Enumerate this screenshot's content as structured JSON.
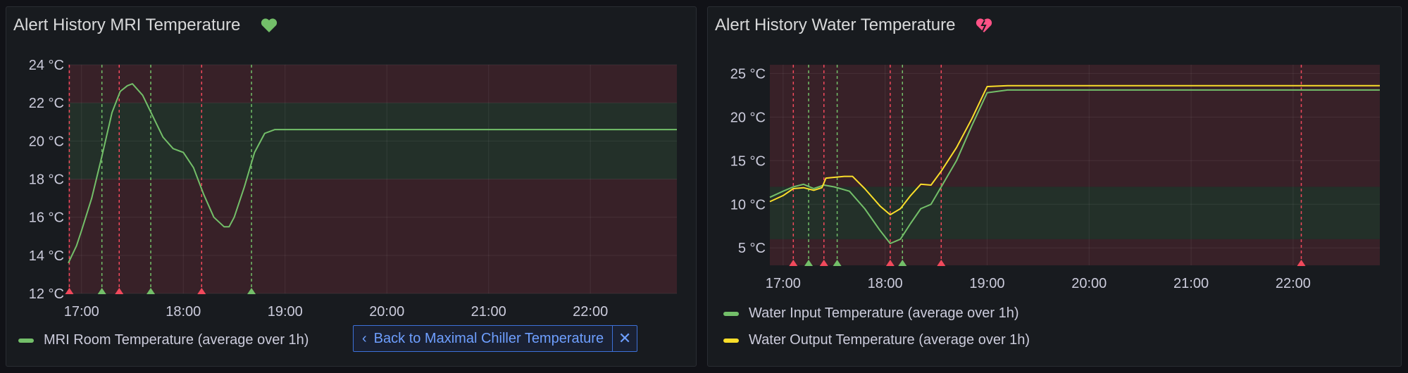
{
  "panels": [
    {
      "title": "Alert History MRI Temperature",
      "health_icon": "heart-icon",
      "health_color": "#73bf69",
      "legend": [
        {
          "label": "MRI Room Temperature (average over 1h)",
          "color": "#73bf69"
        }
      ],
      "back_button": {
        "label": "Back to Maximal Chiller Temperature",
        "close": "✕"
      }
    },
    {
      "title": "Alert History Water Temperature",
      "health_icon": "broken-heart-icon",
      "health_color": "#ff5286",
      "legend": [
        {
          "label": "Water Input Temperature (average over 1h)",
          "color": "#73bf69"
        },
        {
          "label": "Water Output Temperature (average over 1h)",
          "color": "#fade2a"
        }
      ]
    }
  ],
  "chart_data": [
    {
      "type": "line",
      "x_ticks": [
        "17:00",
        "18:00",
        "19:00",
        "20:00",
        "21:00",
        "22:00"
      ],
      "y_ticks": [
        "12 °C",
        "14 °C",
        "16 °C",
        "18 °C",
        "20 °C",
        "22 °C",
        "24 °C"
      ],
      "xlim": [
        16.87,
        22.85
      ],
      "ylim": [
        12,
        24
      ],
      "grid": true,
      "thresholds": {
        "ok_band": [
          18,
          22
        ],
        "ok_color": "#73bf69",
        "alert_color": "#f2495c"
      },
      "alert_annotations": [
        {
          "time": 16.88,
          "state": "alerting"
        },
        {
          "time": 17.2,
          "state": "normal"
        },
        {
          "time": 17.37,
          "state": "alerting"
        },
        {
          "time": 17.68,
          "state": "normal"
        },
        {
          "time": 18.18,
          "state": "alerting"
        },
        {
          "time": 18.67,
          "state": "normal"
        }
      ],
      "series": [
        {
          "name": "MRI Room Temperature (average over 1h)",
          "color": "#73bf69",
          "x": [
            16.87,
            16.95,
            17.0,
            17.1,
            17.2,
            17.3,
            17.38,
            17.45,
            17.5,
            17.6,
            17.7,
            17.8,
            17.9,
            18.0,
            18.1,
            18.2,
            18.3,
            18.4,
            18.45,
            18.5,
            18.6,
            18.7,
            18.8,
            18.9,
            19.0,
            19.5,
            20.5,
            21.5,
            22.5,
            22.85
          ],
          "y": [
            13.6,
            14.5,
            15.3,
            17.0,
            19.2,
            21.5,
            22.6,
            22.9,
            23.0,
            22.4,
            21.3,
            20.2,
            19.6,
            19.4,
            18.6,
            17.2,
            16.0,
            15.5,
            15.5,
            16.0,
            17.6,
            19.4,
            20.4,
            20.6,
            20.6,
            20.6,
            20.6,
            20.6,
            20.6,
            20.6
          ]
        }
      ]
    },
    {
      "type": "line",
      "x_ticks": [
        "17:00",
        "18:00",
        "19:00",
        "20:00",
        "21:00",
        "22:00"
      ],
      "y_ticks": [
        "5 °C",
        "10 °C",
        "15 °C",
        "20 °C",
        "25 °C"
      ],
      "xlim": [
        16.87,
        22.85
      ],
      "ylim": [
        3,
        26
      ],
      "grid": true,
      "thresholds": {
        "ok_band": [
          6,
          12
        ],
        "ok_color": "#73bf69",
        "alert_color": "#f2495c"
      },
      "alert_annotations": [
        {
          "time": 17.1,
          "state": "alerting"
        },
        {
          "time": 17.25,
          "state": "normal"
        },
        {
          "time": 17.4,
          "state": "alerting"
        },
        {
          "time": 17.53,
          "state": "normal"
        },
        {
          "time": 18.05,
          "state": "alerting"
        },
        {
          "time": 18.17,
          "state": "normal"
        },
        {
          "time": 18.55,
          "state": "alerting"
        },
        {
          "time": 22.08,
          "state": "alerting"
        }
      ],
      "series": [
        {
          "name": "Water Input Temperature (average over 1h)",
          "color": "#73bf69",
          "x": [
            16.87,
            17.0,
            17.1,
            17.2,
            17.3,
            17.4,
            17.5,
            17.65,
            17.8,
            17.95,
            18.05,
            18.15,
            18.25,
            18.35,
            18.45,
            18.55,
            18.7,
            18.85,
            19.0,
            19.2,
            20.0,
            21.0,
            22.0,
            22.85
          ],
          "y": [
            10.8,
            11.5,
            12.0,
            12.3,
            11.8,
            12.2,
            12.0,
            11.5,
            9.5,
            7.0,
            5.5,
            6.0,
            7.8,
            9.5,
            10.0,
            12.0,
            15.0,
            19.0,
            22.8,
            23.1,
            23.1,
            23.1,
            23.1,
            23.1
          ]
        },
        {
          "name": "Water Output Temperature (average over 1h)",
          "color": "#fade2a",
          "x": [
            16.87,
            17.0,
            17.1,
            17.2,
            17.3,
            17.38,
            17.42,
            17.6,
            17.68,
            17.8,
            17.95,
            18.05,
            18.15,
            18.25,
            18.35,
            18.45,
            18.55,
            18.7,
            18.85,
            19.0,
            19.2,
            20.0,
            21.0,
            22.0,
            22.85
          ],
          "y": [
            10.3,
            11.0,
            11.8,
            11.9,
            11.6,
            11.9,
            13.0,
            13.2,
            13.2,
            11.8,
            9.8,
            8.8,
            9.5,
            11.0,
            12.3,
            12.2,
            13.8,
            16.5,
            19.8,
            23.5,
            23.6,
            23.6,
            23.6,
            23.6,
            23.6
          ]
        }
      ]
    }
  ]
}
